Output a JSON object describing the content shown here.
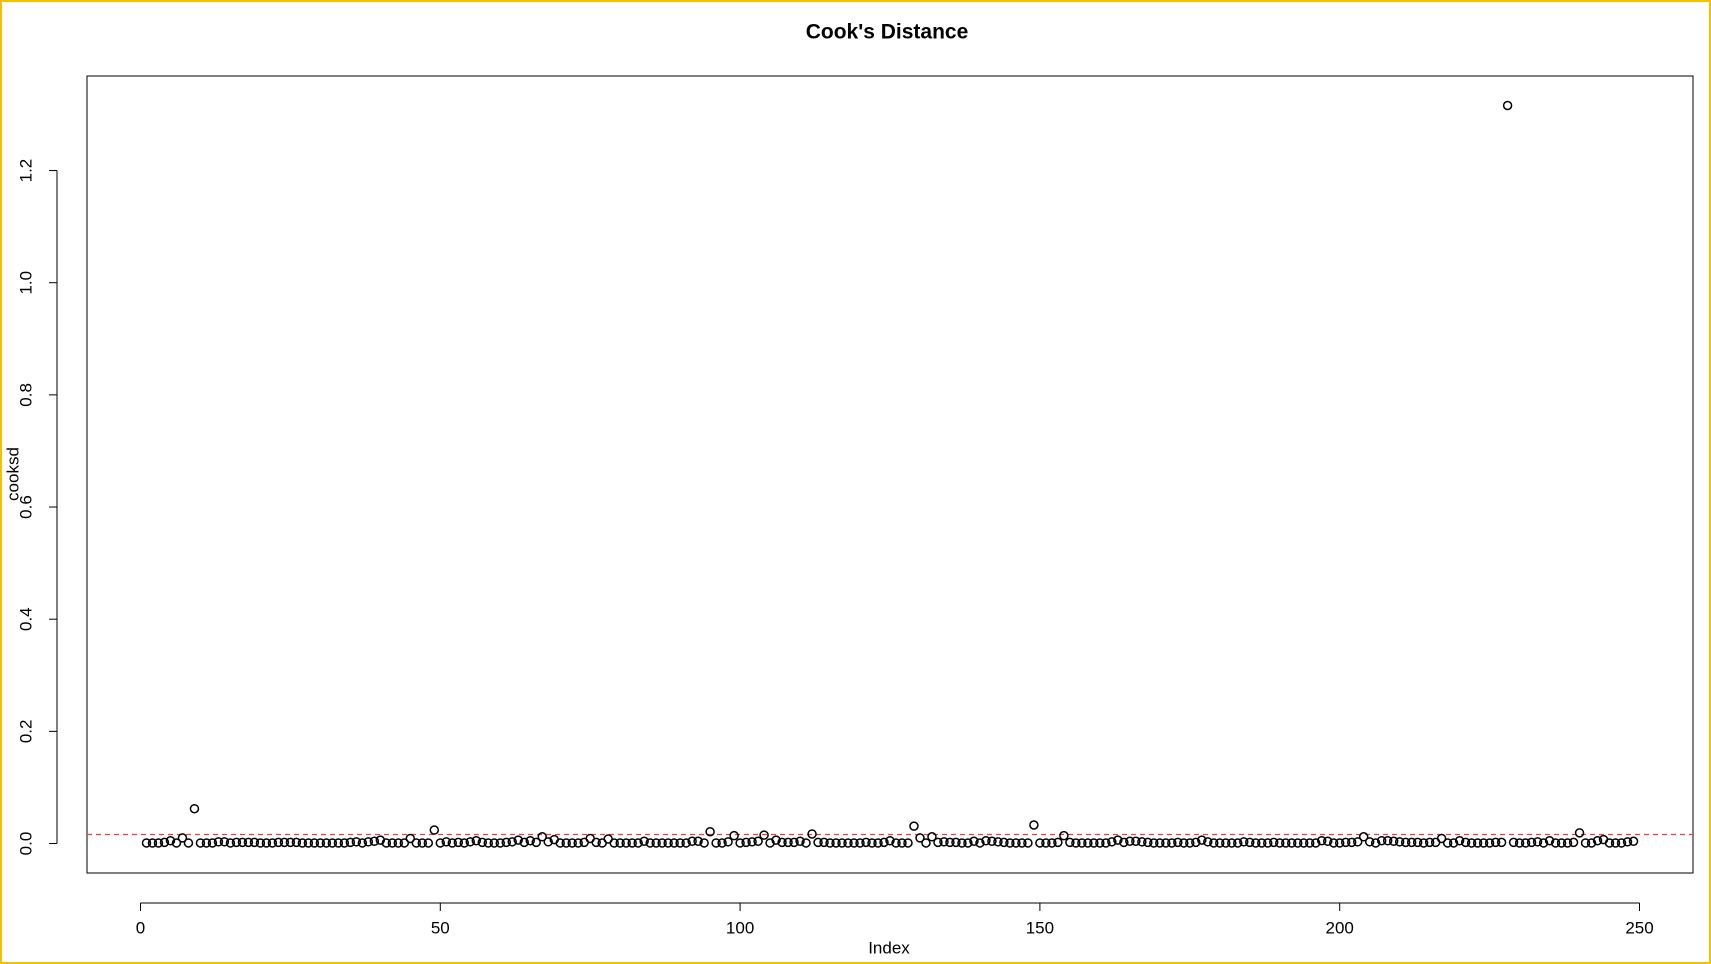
{
  "chart_data": {
    "type": "scatter",
    "title": "Cook's Distance",
    "x_label": "Index",
    "y_label": "cooksd",
    "x": [
      1,
      2,
      3,
      4,
      5,
      6,
      7,
      8,
      9,
      10,
      11,
      12,
      13,
      14,
      15,
      16,
      17,
      18,
      19,
      20,
      21,
      22,
      23,
      24,
      25,
      26,
      27,
      28,
      29,
      30,
      31,
      32,
      33,
      34,
      35,
      36,
      37,
      38,
      39,
      40,
      41,
      42,
      43,
      44,
      45,
      46,
      47,
      48,
      49,
      50,
      51,
      52,
      53,
      54,
      55,
      56,
      57,
      58,
      59,
      60,
      61,
      62,
      63,
      64,
      65,
      66,
      67,
      68,
      69,
      70,
      71,
      72,
      73,
      74,
      75,
      76,
      77,
      78,
      79,
      80,
      81,
      82,
      83,
      84,
      85,
      86,
      87,
      88,
      89,
      90,
      91,
      92,
      93,
      94,
      95,
      96,
      97,
      98,
      99,
      100,
      101,
      102,
      103,
      104,
      105,
      106,
      107,
      108,
      109,
      110,
      111,
      112,
      113,
      114,
      115,
      116,
      117,
      118,
      119,
      120,
      121,
      122,
      123,
      124,
      125,
      126,
      127,
      128,
      129,
      130,
      131,
      132,
      133,
      134,
      135,
      136,
      137,
      138,
      139,
      140,
      141,
      142,
      143,
      144,
      145,
      146,
      147,
      148,
      149,
      150,
      151,
      152,
      153,
      154,
      155,
      156,
      157,
      158,
      159,
      160,
      161,
      162,
      163,
      164,
      165,
      166,
      167,
      168,
      169,
      170,
      171,
      172,
      173,
      174,
      175,
      176,
      177,
      178,
      179,
      180,
      181,
      182,
      183,
      184,
      185,
      186,
      187,
      188,
      189,
      190,
      191,
      192,
      193,
      194,
      195,
      196,
      197,
      198,
      199,
      200,
      201,
      202,
      203,
      204,
      205,
      206,
      207,
      208,
      209,
      210,
      211,
      212,
      213,
      214,
      215,
      216,
      217,
      218,
      219,
      220,
      221,
      222,
      223,
      224,
      225,
      226,
      227,
      228,
      229,
      230,
      231,
      232,
      233,
      234,
      235,
      236,
      237,
      238,
      239,
      240,
      241,
      242,
      243,
      244,
      245,
      246,
      247,
      248,
      249
    ],
    "values": [
      0.001,
      0.001,
      0.001,
      0.002,
      0.005,
      0.001,
      0.01,
      0.001,
      0.062,
      0.001,
      0.001,
      0.001,
      0.003,
      0.003,
      0.001,
      0.002,
      0.002,
      0.002,
      0.002,
      0.001,
      0.001,
      0.001,
      0.002,
      0.002,
      0.002,
      0.002,
      0.001,
      0.001,
      0.001,
      0.001,
      0.001,
      0.001,
      0.001,
      0.001,
      0.002,
      0.003,
      0.001,
      0.003,
      0.004,
      0.006,
      0.001,
      0.001,
      0.001,
      0.001,
      0.009,
      0.001,
      0.001,
      0.001,
      0.024,
      0.001,
      0.003,
      0.001,
      0.002,
      0.001,
      0.003,
      0.005,
      0.002,
      0.001,
      0.001,
      0.001,
      0.002,
      0.003,
      0.006,
      0.002,
      0.005,
      0.002,
      0.012,
      0.003,
      0.007,
      0.001,
      0.001,
      0.001,
      0.001,
      0.002,
      0.009,
      0.002,
      0.001,
      0.008,
      0.001,
      0.001,
      0.001,
      0.001,
      0.001,
      0.004,
      0.001,
      0.001,
      0.001,
      0.001,
      0.001,
      0.001,
      0.001,
      0.004,
      0.004,
      0.001,
      0.021,
      0.001,
      0.001,
      0.003,
      0.014,
      0.001,
      0.002,
      0.003,
      0.004,
      0.015,
      0.001,
      0.006,
      0.002,
      0.002,
      0.002,
      0.004,
      0.001,
      0.017,
      0.002,
      0.002,
      0.001,
      0.001,
      0.001,
      0.001,
      0.001,
      0.001,
      0.002,
      0.001,
      0.001,
      0.002,
      0.005,
      0.001,
      0.001,
      0.001,
      0.031,
      0.01,
      0.001,
      0.012,
      0.002,
      0.003,
      0.002,
      0.002,
      0.001,
      0.001,
      0.004,
      0.001,
      0.005,
      0.004,
      0.003,
      0.002,
      0.001,
      0.001,
      0.001,
      0.001,
      0.033,
      0.001,
      0.001,
      0.001,
      0.002,
      0.014,
      0.002,
      0.001,
      0.001,
      0.001,
      0.001,
      0.001,
      0.001,
      0.003,
      0.006,
      0.002,
      0.004,
      0.004,
      0.003,
      0.002,
      0.001,
      0.001,
      0.001,
      0.001,
      0.002,
      0.001,
      0.001,
      0.002,
      0.006,
      0.003,
      0.001,
      0.001,
      0.001,
      0.001,
      0.001,
      0.003,
      0.002,
      0.001,
      0.001,
      0.001,
      0.002,
      0.001,
      0.001,
      0.001,
      0.001,
      0.001,
      0.001,
      0.001,
      0.005,
      0.004,
      0.001,
      0.001,
      0.002,
      0.002,
      0.003,
      0.012,
      0.003,
      0.001,
      0.005,
      0.005,
      0.004,
      0.003,
      0.002,
      0.002,
      0.002,
      0.001,
      0.002,
      0.002,
      0.009,
      0.001,
      0.001,
      0.005,
      0.002,
      0.001,
      0.001,
      0.001,
      0.001,
      0.002,
      0.002,
      1.316,
      0.002,
      0.001,
      0.001,
      0.002,
      0.003,
      0.001,
      0.005,
      0.001,
      0.001,
      0.001,
      0.002,
      0.019,
      0.001,
      0.001,
      0.005,
      0.007,
      0.001,
      0.001,
      0.001,
      0.003,
      0.004
    ],
    "threshold": 0.016,
    "threshold_color": "#e8413c",
    "color": "#000000",
    "xlim": [
      -8.92,
      258.92
    ],
    "xticks": [
      0,
      50,
      100,
      150,
      200,
      250
    ],
    "ylim": [
      -0.0526,
      1.3686
    ],
    "yticks": [
      {
        "value": 0,
        "label": "0.0"
      },
      {
        "value": 0.2,
        "label": "0.2"
      },
      {
        "value": 0.4,
        "label": "0.4"
      },
      {
        "value": 0.6,
        "label": "0.6"
      },
      {
        "value": 0.8,
        "label": "0.8"
      },
      {
        "value": 1.0,
        "label": "1.0"
      },
      {
        "value": 1.2,
        "label": "1.2"
      }
    ],
    "grid": false
  }
}
